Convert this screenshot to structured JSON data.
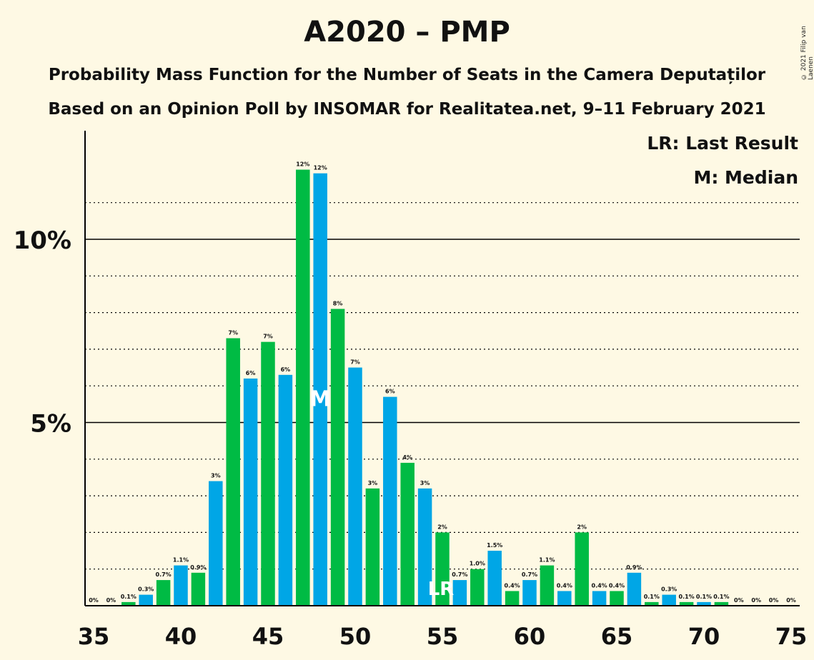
{
  "title": "A2020 – PMP",
  "subtitle1": "Probability Mass Function for the Number of Seats in the Camera Deputaților",
  "subtitle2": "Based on an Opinion Poll by INSOMAR for Realitatea.net, 9–11 February 2021",
  "copyright": "© 2021 Filip van Laenen",
  "legend": {
    "lr": "LR: Last Result",
    "median": "M: Median"
  },
  "colors": {
    "background": "#fef9e4",
    "green": "#00bb44",
    "blue": "#00a6e6"
  },
  "chart_data": {
    "type": "bar",
    "xlabel": "",
    "ylabel": "",
    "x": [
      35,
      36,
      37,
      38,
      39,
      40,
      41,
      42,
      43,
      44,
      45,
      46,
      47,
      48,
      49,
      50,
      51,
      52,
      53,
      54,
      55,
      56,
      57,
      58,
      59,
      60,
      61,
      62,
      63,
      64,
      65,
      66,
      67,
      68,
      69,
      70,
      71,
      72,
      73,
      74,
      75
    ],
    "values": [
      0,
      0,
      0.1,
      0.3,
      0.7,
      1.1,
      0.9,
      3.4,
      7.3,
      6.2,
      7.2,
      6.3,
      11.9,
      11.8,
      8.1,
      6.5,
      3.2,
      5.7,
      3.9,
      3.2,
      2.0,
      0.7,
      1.0,
      1.5,
      0.4,
      0.7,
      1.1,
      0.4,
      2.0,
      0.4,
      0.4,
      0.9,
      0.1,
      0.3,
      0.1,
      0.1,
      0.1,
      0,
      0,
      0,
      0
    ],
    "labels": [
      "0%",
      "0%",
      "0.1%",
      "0.3%",
      "0.7%",
      "1.1%",
      "0.9%",
      "3%",
      "7%",
      "6%",
      "7%",
      "6%",
      "12%",
      "12%",
      "8%",
      "7%",
      "3%",
      "6%",
      "4%",
      "3%",
      "2%",
      "0.7%",
      "1.0%",
      "1.5%",
      "0.4%",
      "0.7%",
      "1.1%",
      "0.4%",
      "2%",
      "0.4%",
      "0.4%",
      "0.9%",
      "0.1%",
      "0.3%",
      "0.1%",
      "0.1%",
      "0.1%",
      "0%",
      "0%",
      "0%",
      "0%"
    ],
    "xticks": [
      "35",
      "40",
      "45",
      "50",
      "55",
      "60",
      "65",
      "70",
      "75"
    ],
    "yticks": [
      "5%",
      "10%"
    ],
    "ylim": [
      0,
      13
    ],
    "last_result": {
      "seat": 55,
      "label": "LR"
    },
    "median": {
      "seat": 48,
      "label": "M"
    }
  }
}
